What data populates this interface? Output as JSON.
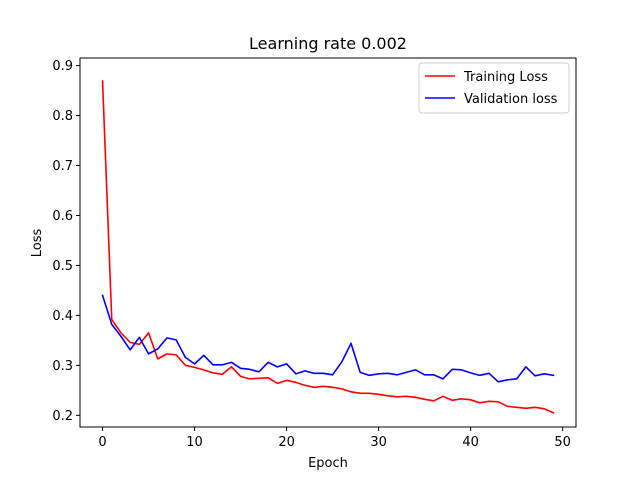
{
  "chart_data": {
    "type": "line",
    "title": "Learning rate 0.002",
    "xlabel": "Epoch",
    "ylabel": "Loss",
    "xlim": [
      -2.45,
      51.45
    ],
    "ylim": [
      0.1766,
      0.9152
    ],
    "x_ticks": [
      0,
      10,
      20,
      30,
      40,
      50
    ],
    "y_ticks": [
      0.2,
      0.3,
      0.4,
      0.5,
      0.6,
      0.7,
      0.8,
      0.9
    ],
    "grid": false,
    "legend": "top-right",
    "x": [
      0,
      1,
      2,
      3,
      4,
      5,
      6,
      7,
      8,
      9,
      10,
      11,
      12,
      13,
      14,
      15,
      16,
      17,
      18,
      19,
      20,
      21,
      22,
      23,
      24,
      25,
      26,
      27,
      28,
      29,
      30,
      31,
      32,
      33,
      34,
      35,
      36,
      37,
      38,
      39,
      40,
      41,
      42,
      43,
      44,
      45,
      46,
      47,
      48,
      49
    ],
    "series": [
      {
        "name": "Training Loss",
        "color": "#ff0000",
        "values": [
          0.869,
          0.392,
          0.365,
          0.346,
          0.342,
          0.365,
          0.313,
          0.323,
          0.321,
          0.3,
          0.296,
          0.291,
          0.285,
          0.282,
          0.297,
          0.278,
          0.273,
          0.274,
          0.275,
          0.264,
          0.27,
          0.266,
          0.26,
          0.256,
          0.258,
          0.256,
          0.253,
          0.247,
          0.244,
          0.244,
          0.242,
          0.239,
          0.237,
          0.238,
          0.236,
          0.232,
          0.229,
          0.238,
          0.23,
          0.233,
          0.231,
          0.225,
          0.228,
          0.227,
          0.218,
          0.216,
          0.214,
          0.216,
          0.213,
          0.205
        ]
      },
      {
        "name": "Validation loss",
        "color": "#0000ff",
        "values": [
          0.44,
          0.382,
          0.358,
          0.331,
          0.356,
          0.323,
          0.333,
          0.355,
          0.351,
          0.316,
          0.303,
          0.32,
          0.301,
          0.301,
          0.306,
          0.294,
          0.292,
          0.287,
          0.306,
          0.297,
          0.303,
          0.283,
          0.289,
          0.284,
          0.284,
          0.281,
          0.307,
          0.344,
          0.286,
          0.28,
          0.283,
          0.284,
          0.281,
          0.286,
          0.291,
          0.281,
          0.281,
          0.273,
          0.292,
          0.291,
          0.285,
          0.28,
          0.284,
          0.267,
          0.271,
          0.273,
          0.297,
          0.279,
          0.283,
          0.28
        ]
      }
    ]
  }
}
